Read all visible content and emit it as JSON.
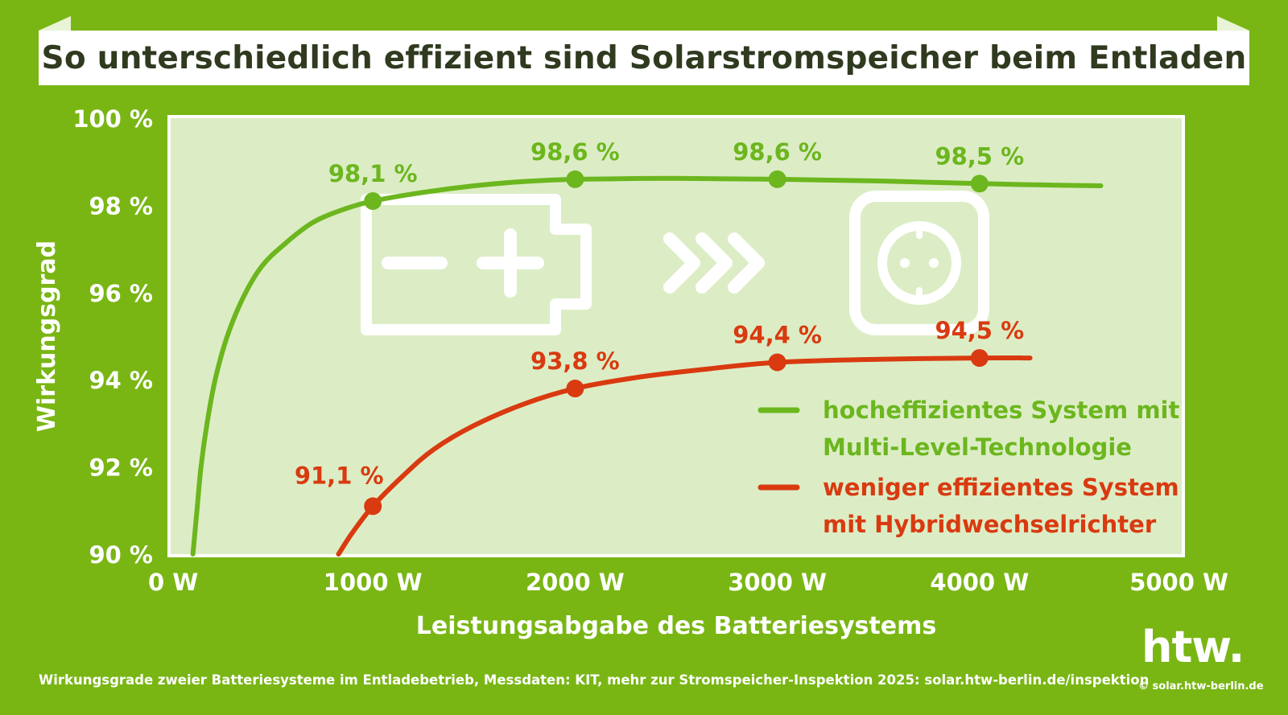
{
  "title": "So unterschiedlich effizient sind Solarstromspeicher beim Entladen",
  "footnote": "Wirkungsgrade zweier Batteriesysteme im Entladebetrieb, Messdaten: KIT, mehr zur Stromspeicher-Inspektion 2025: solar.htw-berlin.de/inspektion",
  "logo_text": "htw.",
  "credit": "© solar.htw-berlin.de",
  "colors": {
    "background": "#79b614",
    "plot_area": "#dcedc5",
    "green_series": "#6cb61e",
    "red_series": "#d93a10",
    "icon": "#ffffff"
  },
  "icons": [
    "battery-icon",
    "chevron-arrows-icon",
    "power-socket-icon"
  ],
  "chart_data": {
    "type": "line",
    "xlabel": "Leistungsabgabe des Batteriesystems",
    "ylabel": "Wirkungsgrad",
    "xlim": [
      0,
      5000
    ],
    "ylim": [
      90,
      100
    ],
    "x_ticks": [
      0,
      1000,
      2000,
      3000,
      4000,
      5000
    ],
    "x_tick_labels": [
      "0 W",
      "1000 W",
      "2000 W",
      "3000 W",
      "4000 W",
      "5000 W"
    ],
    "y_ticks": [
      90,
      92,
      94,
      96,
      98,
      100
    ],
    "y_tick_labels": [
      "90 %",
      "92 %",
      "94 %",
      "96 %",
      "98 %",
      "100 %"
    ],
    "grid": false,
    "legend_position": "lower-right",
    "series": [
      {
        "name": "hocheffizientes System mit Multi-Level-Technologie",
        "legend_lines": [
          "hocheffizientes System mit",
          "Multi-Level-Technologie"
        ],
        "color": "#6cb61e",
        "curve": [
          [
            110,
            90.0
          ],
          [
            130,
            91.0
          ],
          [
            150,
            92.0
          ],
          [
            180,
            93.0
          ],
          [
            220,
            94.0
          ],
          [
            280,
            95.0
          ],
          [
            360,
            95.9
          ],
          [
            450,
            96.6
          ],
          [
            560,
            97.1
          ],
          [
            700,
            97.6
          ],
          [
            850,
            97.9
          ],
          [
            1000,
            98.1
          ],
          [
            1250,
            98.3
          ],
          [
            1500,
            98.45
          ],
          [
            1750,
            98.55
          ],
          [
            2000,
            98.6
          ],
          [
            2500,
            98.62
          ],
          [
            3000,
            98.6
          ],
          [
            3500,
            98.56
          ],
          [
            4000,
            98.5
          ],
          [
            4300,
            98.47
          ],
          [
            4600,
            98.45
          ]
        ],
        "points": [
          {
            "x": 1000,
            "y": 98.1,
            "label": "98,1 %"
          },
          {
            "x": 2000,
            "y": 98.6,
            "label": "98,6 %"
          },
          {
            "x": 3000,
            "y": 98.6,
            "label": "98,6 %"
          },
          {
            "x": 4000,
            "y": 98.5,
            "label": "98,5 %"
          }
        ]
      },
      {
        "name": "weniger effizientes System mit Hybridwechselrichter",
        "legend_lines": [
          "weniger effizientes System",
          "mit Hybridwechselrichter"
        ],
        "color": "#d93a10",
        "curve": [
          [
            830,
            90.0
          ],
          [
            900,
            90.5
          ],
          [
            1000,
            91.1
          ],
          [
            1150,
            91.8
          ],
          [
            1300,
            92.4
          ],
          [
            1500,
            92.95
          ],
          [
            1750,
            93.45
          ],
          [
            2000,
            93.8
          ],
          [
            2300,
            94.05
          ],
          [
            2600,
            94.22
          ],
          [
            3000,
            94.4
          ],
          [
            3500,
            94.47
          ],
          [
            4000,
            94.5
          ],
          [
            4250,
            94.5
          ]
        ],
        "points": [
          {
            "x": 1000,
            "y": 91.1,
            "label": "91,1 %"
          },
          {
            "x": 2000,
            "y": 93.8,
            "label": "93,8 %"
          },
          {
            "x": 3000,
            "y": 94.4,
            "label": "94,4 %"
          },
          {
            "x": 4000,
            "y": 94.5,
            "label": "94,5 %"
          }
        ]
      }
    ]
  }
}
